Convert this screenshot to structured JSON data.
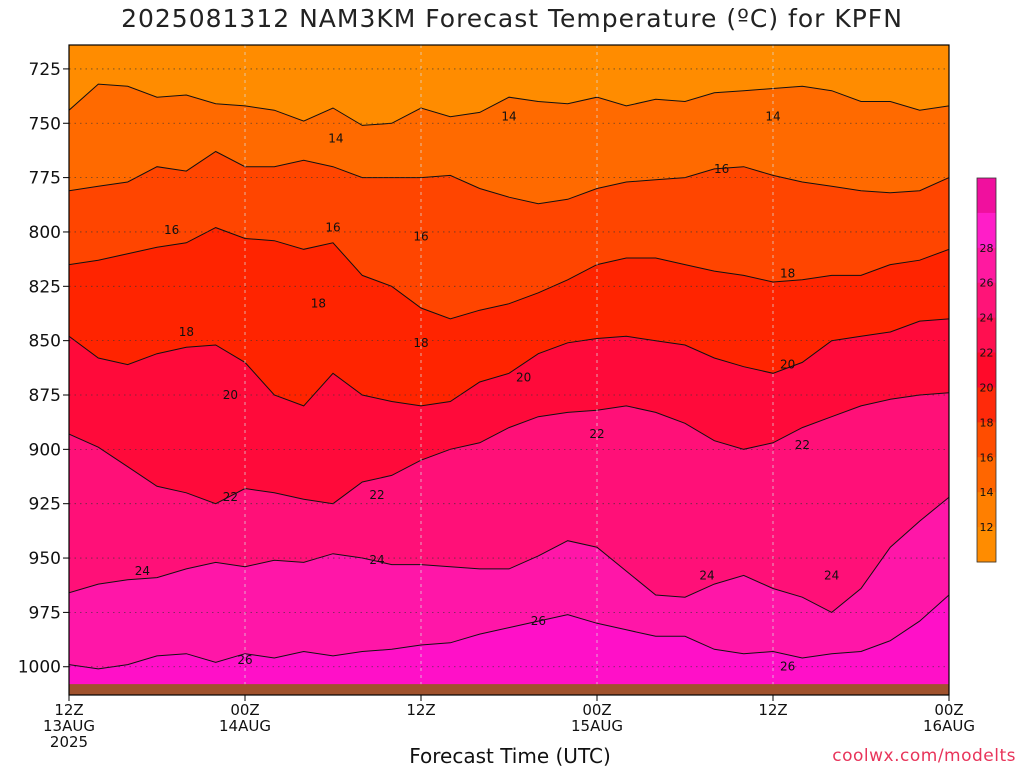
{
  "title": "2025081312 NAM3KM Forecast Temperature (ºC) for KPFN",
  "xlabel": "Forecast Time (UTC)",
  "credit": "coolwx.com/modelts",
  "chart_data": {
    "type": "contour",
    "title": "2025081312 NAM3KM Forecast Temperature (ºC) for KPFN",
    "xlabel": "Forecast Time (UTC)",
    "ylabel": "",
    "y_axis": {
      "unit": "hPa",
      "reversed": true,
      "ylim": [
        1013,
        714
      ],
      "ticks": [
        725,
        750,
        775,
        800,
        825,
        850,
        875,
        900,
        925,
        950,
        975,
        1000
      ]
    },
    "x_axis": {
      "xlim": [
        0,
        60
      ],
      "ticks": [
        {
          "h": 0,
          "lines": [
            "12Z",
            "13AUG",
            "2025"
          ]
        },
        {
          "h": 12,
          "lines": [
            "00Z",
            "14AUG"
          ]
        },
        {
          "h": 24,
          "lines": [
            "12Z"
          ]
        },
        {
          "h": 36,
          "lines": [
            "00Z",
            "15AUG"
          ]
        },
        {
          "h": 48,
          "lines": [
            "12Z"
          ]
        },
        {
          "h": 60,
          "lines": [
            "00Z",
            "16AUG"
          ]
        }
      ]
    },
    "grid": true,
    "colorbar": {
      "ticks": [
        12,
        14,
        16,
        18,
        20,
        22,
        24,
        26,
        28
      ],
      "position": "right",
      "colors": [
        "#ff8c00",
        "#ff7f00",
        "#ff6600",
        "#ff4d00",
        "#ff2a0a",
        "#ff0a2a",
        "#ff0f50",
        "#ff1478",
        "#ff19a0",
        "#ff1ec8",
        "#f0109e"
      ]
    },
    "contour_levels": [
      14,
      16,
      18,
      20,
      22,
      24,
      26
    ],
    "isotherms": [
      {
        "level": 14,
        "pressure_hPa": [
          744,
          732,
          733,
          738,
          737,
          741,
          742,
          744,
          749,
          743,
          751,
          750,
          743,
          747,
          745,
          738,
          740,
          741,
          738,
          742,
          739,
          740,
          736,
          735,
          734,
          733,
          735,
          740,
          740,
          744,
          742
        ]
      },
      {
        "level": 16,
        "pressure_hPa": [
          781,
          779,
          777,
          770,
          772,
          763,
          770,
          770,
          767,
          770,
          775,
          775,
          775,
          774,
          780,
          784,
          787,
          785,
          780,
          777,
          776,
          775,
          771,
          770,
          774,
          777,
          779,
          781,
          782,
          781,
          775
        ]
      },
      {
        "level": 18,
        "pressure_hPa": [
          815,
          813,
          810,
          807,
          805,
          798,
          803,
          804,
          808,
          805,
          820,
          825,
          835,
          840,
          836,
          833,
          828,
          822,
          815,
          812,
          812,
          815,
          818,
          820,
          823,
          822,
          820,
          820,
          815,
          813,
          808
        ]
      },
      {
        "level": 20,
        "pressure_hPa": [
          848,
          858,
          861,
          856,
          853,
          852,
          860,
          875,
          880,
          865,
          875,
          878,
          880,
          878,
          869,
          865,
          856,
          851,
          849,
          848,
          850,
          852,
          858,
          862,
          865,
          860,
          850,
          848,
          846,
          841,
          840
        ]
      },
      {
        "level": 22,
        "pressure_hPa": [
          893,
          899,
          908,
          917,
          920,
          925,
          918,
          920,
          923,
          925,
          915,
          912,
          905,
          900,
          897,
          890,
          885,
          883,
          882,
          880,
          883,
          888,
          896,
          900,
          897,
          890,
          885,
          880,
          877,
          875,
          874
        ]
      },
      {
        "level": 24,
        "pressure_hPa": [
          966,
          962,
          960,
          959,
          955,
          952,
          954,
          951,
          952,
          948,
          950,
          953,
          953,
          954,
          955,
          955,
          949,
          942,
          945,
          956,
          967,
          968,
          962,
          958,
          964,
          968,
          975,
          964,
          945,
          933,
          922
        ]
      },
      {
        "level": 26,
        "pressure_hPa": [
          999,
          1001,
          999,
          995,
          994,
          998,
          994,
          996,
          993,
          995,
          993,
          992,
          990,
          989,
          985,
          982,
          979,
          976,
          980,
          983,
          986,
          986,
          992,
          994,
          993,
          996,
          994,
          993,
          988,
          979,
          967
        ]
      }
    ],
    "contour_labels": [
      {
        "text": "14",
        "x": 18.2,
        "p": 757
      },
      {
        "text": "14",
        "x": 30,
        "p": 747
      },
      {
        "text": "14",
        "x": 48,
        "p": 747
      },
      {
        "text": "16",
        "x": 7,
        "p": 799
      },
      {
        "text": "16",
        "x": 18,
        "p": 798
      },
      {
        "text": "16",
        "x": 24,
        "p": 802
      },
      {
        "text": "16",
        "x": 44.5,
        "p": 771
      },
      {
        "text": "18",
        "x": 8,
        "p": 846
      },
      {
        "text": "18",
        "x": 17,
        "p": 833
      },
      {
        "text": "18",
        "x": 24,
        "p": 851
      },
      {
        "text": "18",
        "x": 49,
        "p": 819
      },
      {
        "text": "20",
        "x": 11,
        "p": 875
      },
      {
        "text": "20",
        "x": 31,
        "p": 867
      },
      {
        "text": "20",
        "x": 49,
        "p": 861
      },
      {
        "text": "22",
        "x": 11,
        "p": 922
      },
      {
        "text": "22",
        "x": 21,
        "p": 921
      },
      {
        "text": "22",
        "x": 36,
        "p": 893
      },
      {
        "text": "22",
        "x": 50,
        "p": 898
      },
      {
        "text": "24",
        "x": 5,
        "p": 956
      },
      {
        "text": "24",
        "x": 21,
        "p": 951
      },
      {
        "text": "24",
        "x": 43.5,
        "p": 958
      },
      {
        "text": "24",
        "x": 52,
        "p": 958
      },
      {
        "text": "26",
        "x": 12,
        "p": 997
      },
      {
        "text": "26",
        "x": 32,
        "p": 979
      },
      {
        "text": "26",
        "x": 49,
        "p": 1000
      }
    ],
    "terrain_top_hPa": 1008
  }
}
